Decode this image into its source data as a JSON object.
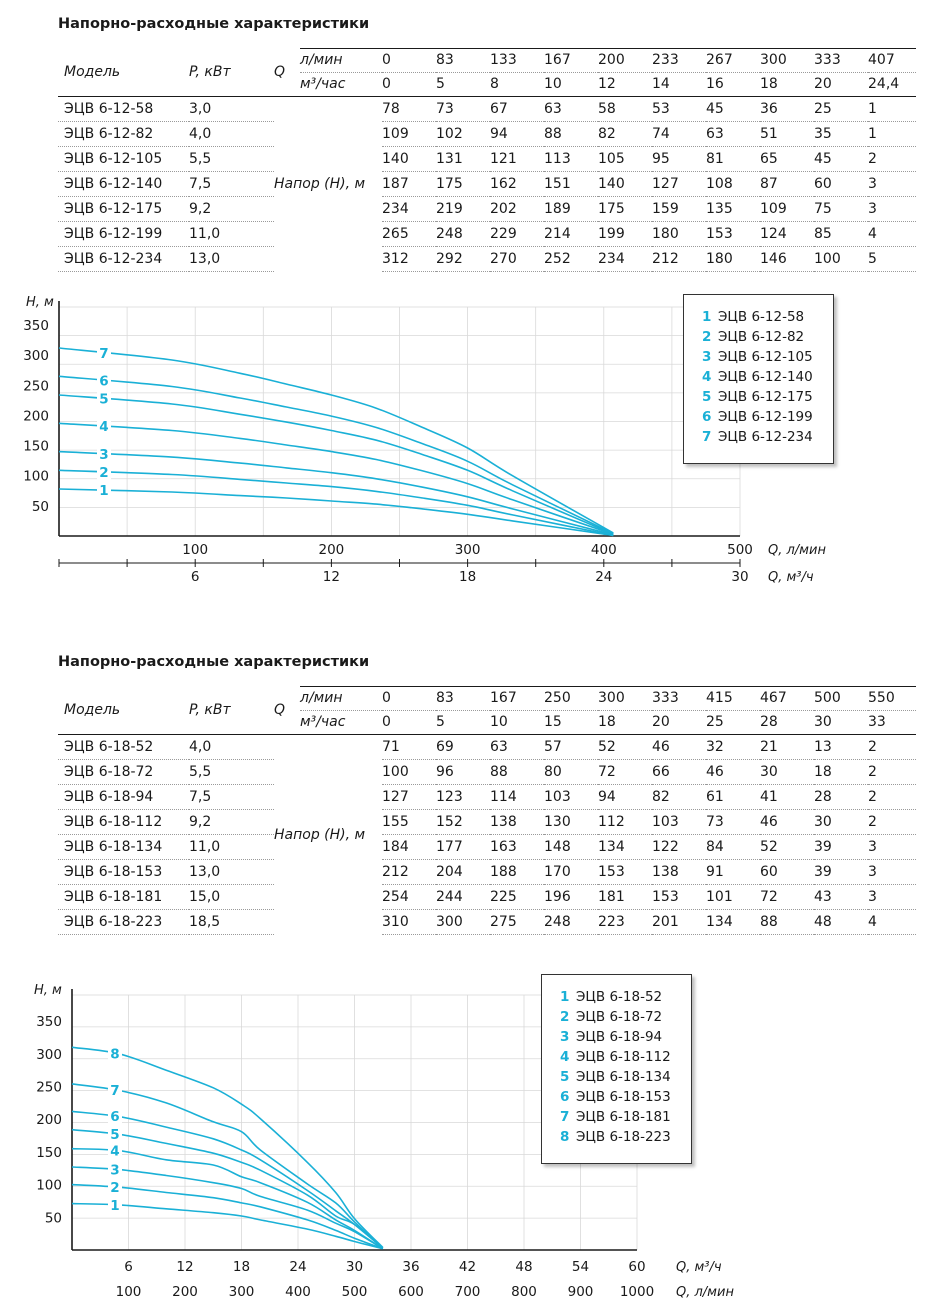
{
  "sections": [
    {
      "title": "Напорно-расходные характеристики",
      "headers": {
        "model": "Модель",
        "power": "P, кВт",
        "q": "Q",
        "unit1": "л/мин",
        "unit2": "м³/час",
        "head": "Напор (Н), м"
      },
      "flow_lpm": [
        "0",
        "83",
        "133",
        "167",
        "200",
        "233",
        "267",
        "300",
        "333",
        "407"
      ],
      "flow_m3h": [
        "0",
        "5",
        "8",
        "10",
        "12",
        "14",
        "16",
        "18",
        "20",
        "24,4"
      ],
      "rows": [
        {
          "model": "ЭЦВ 6-12-58",
          "power": "3,0",
          "values": [
            "78",
            "73",
            "67",
            "63",
            "58",
            "53",
            "45",
            "36",
            "25",
            "1"
          ]
        },
        {
          "model": "ЭЦВ 6-12-82",
          "power": "4,0",
          "values": [
            "109",
            "102",
            "94",
            "88",
            "82",
            "74",
            "63",
            "51",
            "35",
            "1"
          ]
        },
        {
          "model": "ЭЦВ 6-12-105",
          "power": "5,5",
          "values": [
            "140",
            "131",
            "121",
            "113",
            "105",
            "95",
            "81",
            "65",
            "45",
            "2"
          ]
        },
        {
          "model": "ЭЦВ 6-12-140",
          "power": "7,5",
          "values": [
            "187",
            "175",
            "162",
            "151",
            "140",
            "127",
            "108",
            "87",
            "60",
            "3"
          ]
        },
        {
          "model": "ЭЦВ 6-12-175",
          "power": "9,2",
          "values": [
            "234",
            "219",
            "202",
            "189",
            "175",
            "159",
            "135",
            "109",
            "75",
            "3"
          ]
        },
        {
          "model": "ЭЦВ 6-12-199",
          "power": "11,0",
          "values": [
            "265",
            "248",
            "229",
            "214",
            "199",
            "180",
            "153",
            "124",
            "85",
            "4"
          ]
        },
        {
          "model": "ЭЦВ 6-12-234",
          "power": "13,0",
          "values": [
            "312",
            "292",
            "270",
            "252",
            "234",
            "212",
            "180",
            "146",
            "100",
            "5"
          ]
        }
      ]
    },
    {
      "title": "Напорно-расходные характеристики",
      "headers": {
        "model": "Модель",
        "power": "P, кВт",
        "q": "Q",
        "unit1": "л/мин",
        "unit2": "м³/час",
        "head": "Напор (Н), м"
      },
      "flow_lpm": [
        "0",
        "83",
        "167",
        "250",
        "300",
        "333",
        "415",
        "467",
        "500",
        "550"
      ],
      "flow_m3h": [
        "0",
        "5",
        "10",
        "15",
        "18",
        "20",
        "25",
        "28",
        "30",
        "33"
      ],
      "rows": [
        {
          "model": "ЭЦВ 6-18-52",
          "power": "4,0",
          "values": [
            "71",
            "69",
            "63",
            "57",
            "52",
            "46",
            "32",
            "21",
            "13",
            "2"
          ]
        },
        {
          "model": "ЭЦВ 6-18-72",
          "power": "5,5",
          "values": [
            "100",
            "96",
            "88",
            "80",
            "72",
            "66",
            "46",
            "30",
            "18",
            "2"
          ]
        },
        {
          "model": "ЭЦВ 6-18-94",
          "power": "7,5",
          "values": [
            "127",
            "123",
            "114",
            "103",
            "94",
            "82",
            "61",
            "41",
            "28",
            "2"
          ]
        },
        {
          "model": "ЭЦВ 6-18-112",
          "power": "9,2",
          "values": [
            "155",
            "152",
            "138",
            "130",
            "112",
            "103",
            "73",
            "46",
            "30",
            "2"
          ]
        },
        {
          "model": "ЭЦВ 6-18-134",
          "power": "11,0",
          "values": [
            "184",
            "177",
            "163",
            "148",
            "134",
            "122",
            "84",
            "52",
            "39",
            "3"
          ]
        },
        {
          "model": "ЭЦВ 6-18-153",
          "power": "13,0",
          "values": [
            "212",
            "204",
            "188",
            "170",
            "153",
            "138",
            "91",
            "60",
            "39",
            "3"
          ]
        },
        {
          "model": "ЭЦВ 6-18-181",
          "power": "15,0",
          "values": [
            "254",
            "244",
            "225",
            "196",
            "181",
            "153",
            "101",
            "72",
            "43",
            "3"
          ]
        },
        {
          "model": "ЭЦВ 6-18-223",
          "power": "18,5",
          "values": [
            "310",
            "300",
            "275",
            "248",
            "223",
            "201",
            "134",
            "88",
            "48",
            "4"
          ]
        }
      ]
    }
  ],
  "chart_data": [
    {
      "type": "line",
      "ylabel": "Н, м",
      "xlabel_primary": "Q, л/мин",
      "xlabel_secondary": "Q, м³/ч",
      "yticks": [
        "50",
        "100",
        "150",
        "200",
        "250",
        "300",
        "350"
      ],
      "ylim": [
        0,
        380
      ],
      "xlim": [
        0,
        500
      ],
      "xticks_primary": [
        "100",
        "200",
        "300",
        "400",
        "500"
      ],
      "xticks_primary_values": [
        100,
        200,
        300,
        400,
        500
      ],
      "xticks_secondary": [
        "6",
        "12",
        "18",
        "24",
        "30"
      ],
      "xticks_secondary_values": [
        100,
        200,
        300,
        400,
        500
      ],
      "x": [
        0,
        83,
        133,
        167,
        200,
        233,
        267,
        300,
        333,
        407
      ],
      "grid": true,
      "legend": "top-right",
      "color": "#1ab0d6",
      "series": [
        {
          "label": "1",
          "name": "ЭЦВ 6-12-58",
          "values": [
            78,
            73,
            67,
            63,
            58,
            53,
            45,
            36,
            25,
            1
          ]
        },
        {
          "label": "2",
          "name": "ЭЦВ 6-12-82",
          "values": [
            109,
            102,
            94,
            88,
            82,
            74,
            63,
            51,
            35,
            1
          ]
        },
        {
          "label": "3",
          "name": "ЭЦВ 6-12-105",
          "values": [
            140,
            131,
            121,
            113,
            105,
            95,
            81,
            65,
            45,
            2
          ]
        },
        {
          "label": "4",
          "name": "ЭЦВ 6-12-140",
          "values": [
            187,
            175,
            162,
            151,
            140,
            127,
            108,
            87,
            60,
            3
          ]
        },
        {
          "label": "5",
          "name": "ЭЦВ 6-12-175",
          "values": [
            234,
            219,
            202,
            189,
            175,
            159,
            135,
            109,
            75,
            3
          ]
        },
        {
          "label": "6",
          "name": "ЭЦВ 6-12-199",
          "values": [
            265,
            248,
            229,
            214,
            199,
            180,
            153,
            124,
            85,
            4
          ]
        },
        {
          "label": "7",
          "name": "ЭЦВ 6-12-234",
          "values": [
            312,
            292,
            270,
            252,
            234,
            212,
            180,
            146,
            100,
            5
          ]
        }
      ]
    },
    {
      "type": "line",
      "ylabel": "Н, м",
      "xlabel_primary": "Q, м³/ч",
      "xlabel_secondary": "Q, л/мин",
      "yticks": [
        "50",
        "100",
        "150",
        "200",
        "250",
        "300",
        "350"
      ],
      "ylim": [
        0,
        390
      ],
      "xlim": [
        0,
        60
      ],
      "xticks_primary": [
        "6",
        "12",
        "18",
        "24",
        "30",
        "36",
        "42",
        "48",
        "54",
        "60"
      ],
      "xticks_primary_values": [
        6,
        12,
        18,
        24,
        30,
        36,
        42,
        48,
        54,
        60
      ],
      "xticks_secondary": [
        "100",
        "200",
        "300",
        "400",
        "500",
        "600",
        "700",
        "800",
        "900",
        "1000"
      ],
      "xticks_secondary_values": [
        6,
        12,
        18,
        24,
        30,
        36,
        42,
        48,
        54,
        60
      ],
      "x": [
        0,
        5,
        10,
        15,
        18,
        20,
        25,
        28,
        30,
        33
      ],
      "grid": true,
      "legend": "top-right",
      "color": "#1ab0d6",
      "series": [
        {
          "label": "1",
          "name": "ЭЦВ 6-18-52",
          "values": [
            71,
            69,
            63,
            57,
            52,
            46,
            32,
            21,
            13,
            2
          ]
        },
        {
          "label": "2",
          "name": "ЭЦВ 6-18-72",
          "values": [
            100,
            96,
            88,
            80,
            72,
            66,
            46,
            30,
            18,
            2
          ]
        },
        {
          "label": "3",
          "name": "ЭЦВ 6-18-94",
          "values": [
            127,
            123,
            114,
            103,
            94,
            82,
            61,
            41,
            28,
            2
          ]
        },
        {
          "label": "4",
          "name": "ЭЦВ 6-18-112",
          "values": [
            155,
            152,
            138,
            130,
            112,
            103,
            73,
            46,
            30,
            2
          ]
        },
        {
          "label": "5",
          "name": "ЭЦВ 6-18-134",
          "values": [
            184,
            177,
            163,
            148,
            134,
            122,
            84,
            52,
            39,
            3
          ]
        },
        {
          "label": "6",
          "name": "ЭЦВ 6-18-153",
          "values": [
            212,
            204,
            188,
            170,
            153,
            138,
            91,
            60,
            39,
            3
          ]
        },
        {
          "label": "7",
          "name": "ЭЦВ 6-18-181",
          "values": [
            254,
            244,
            225,
            196,
            181,
            153,
            101,
            72,
            43,
            3
          ]
        },
        {
          "label": "8",
          "name": "ЭЦВ 6-18-223",
          "values": [
            310,
            300,
            275,
            248,
            223,
            201,
            134,
            88,
            48,
            4
          ]
        }
      ]
    }
  ]
}
